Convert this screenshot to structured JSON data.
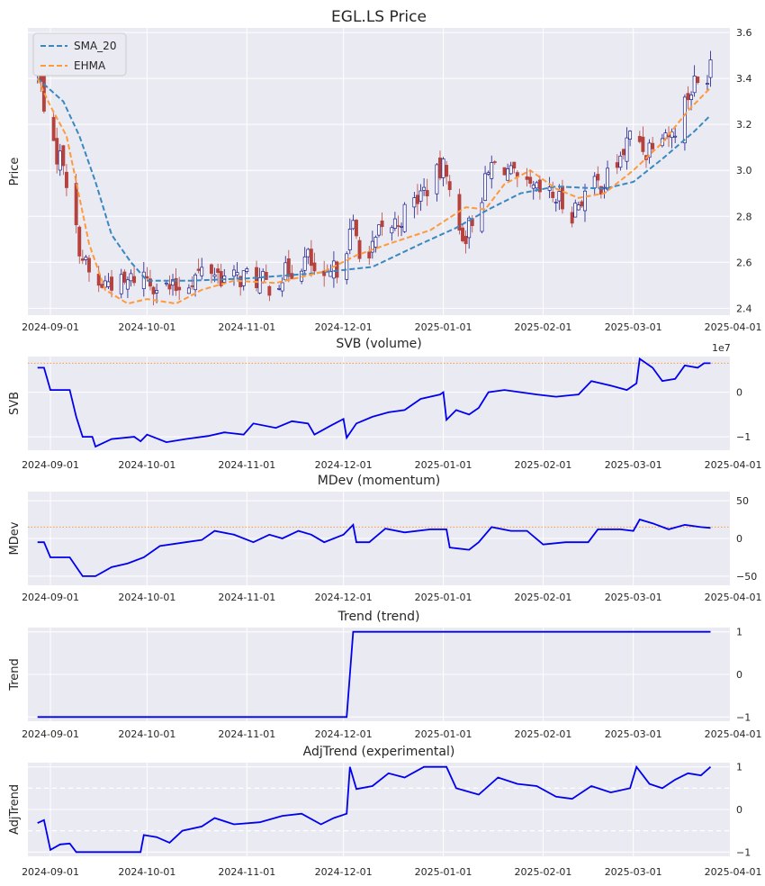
{
  "figure": {
    "title": "EGL.LS Price",
    "colors": {
      "panel_bg": "#eaeaf2",
      "grid": "#ffffff",
      "up": "#1a1a8c",
      "down": "#b5423d",
      "sma": "#3a88c0",
      "ehma": "#ff9a3c",
      "line": "#0000ee",
      "ref": "#ff9a3c"
    }
  },
  "chart_data": [
    {
      "id": "price",
      "type": "candlestick",
      "title": "EGL.LS Price",
      "ylabel": "Price",
      "xlim": [
        "2024-08-25",
        "2025-03-31"
      ],
      "ylim": [
        2.37,
        3.62
      ],
      "yticks": [
        2.4,
        2.6,
        2.8,
        3.0,
        3.2,
        3.4,
        3.6
      ],
      "ytick_labels": [
        "2.4",
        "2.6",
        "2.8",
        "3.0",
        "3.2",
        "3.4",
        "3.6"
      ],
      "xticks": [
        "2024-09-01",
        "2024-10-01",
        "2024-11-01",
        "2024-12-01",
        "2025-01-01",
        "2025-02-01",
        "2025-03-01",
        "2025-04-01"
      ],
      "legend": {
        "position": "top-left",
        "entries": [
          "SMA_20",
          "EHMA"
        ]
      },
      "close_anchors": [
        [
          "2024-08-28",
          3.44
        ],
        [
          "2024-08-30",
          3.3
        ],
        [
          "2024-09-02",
          3.08
        ],
        [
          "2024-09-05",
          3.05
        ],
        [
          "2024-09-08",
          2.78
        ],
        [
          "2024-09-11",
          2.62
        ],
        [
          "2024-09-15",
          2.48
        ],
        [
          "2024-09-19",
          2.52
        ],
        [
          "2024-09-24",
          2.5
        ],
        [
          "2024-09-29",
          2.56
        ],
        [
          "2024-10-04",
          2.5
        ],
        [
          "2024-10-09",
          2.48
        ],
        [
          "2024-10-14",
          2.52
        ],
        [
          "2024-10-20",
          2.58
        ],
        [
          "2024-10-26",
          2.52
        ],
        [
          "2024-11-01",
          2.54
        ],
        [
          "2024-11-08",
          2.5
        ],
        [
          "2024-11-15",
          2.57
        ],
        [
          "2024-11-20",
          2.62
        ],
        [
          "2024-11-24",
          2.48
        ],
        [
          "2024-11-29",
          2.58
        ],
        [
          "2024-12-04",
          2.75
        ],
        [
          "2024-12-08",
          2.58
        ],
        [
          "2024-12-12",
          2.72
        ],
        [
          "2024-12-18",
          2.78
        ],
        [
          "2024-12-24",
          2.88
        ],
        [
          "2024-12-29",
          2.96
        ],
        [
          "2025-01-02",
          3.02
        ],
        [
          "2025-01-04",
          2.75
        ],
        [
          "2025-01-08",
          2.72
        ],
        [
          "2025-01-12",
          2.86
        ],
        [
          "2025-01-16",
          3.02
        ],
        [
          "2025-01-20",
          3.02
        ],
        [
          "2025-01-25",
          2.92
        ],
        [
          "2025-01-31",
          2.9
        ],
        [
          "2025-02-05",
          2.88
        ],
        [
          "2025-02-10",
          2.82
        ],
        [
          "2025-02-15",
          2.92
        ],
        [
          "2025-02-20",
          2.95
        ],
        [
          "2025-02-25",
          3.05
        ],
        [
          "2025-03-01",
          3.18
        ],
        [
          "2025-03-05",
          3.08
        ],
        [
          "2025-03-09",
          3.2
        ],
        [
          "2025-03-13",
          3.15
        ],
        [
          "2025-03-17",
          3.3
        ],
        [
          "2025-03-20",
          3.38
        ],
        [
          "2025-03-23",
          3.35
        ],
        [
          "2025-03-25",
          3.5
        ]
      ],
      "sma_20": [
        [
          "2024-08-28",
          3.4
        ],
        [
          "2024-09-01",
          3.35
        ],
        [
          "2024-09-05",
          3.3
        ],
        [
          "2024-09-10",
          3.15
        ],
        [
          "2024-09-15",
          2.95
        ],
        [
          "2024-09-20",
          2.72
        ],
        [
          "2024-09-26",
          2.6
        ],
        [
          "2024-10-01",
          2.52
        ],
        [
          "2024-10-15",
          2.52
        ],
        [
          "2024-11-01",
          2.53
        ],
        [
          "2024-11-20",
          2.55
        ],
        [
          "2024-12-10",
          2.58
        ],
        [
          "2024-12-25",
          2.68
        ],
        [
          "2025-01-05",
          2.75
        ],
        [
          "2025-01-15",
          2.83
        ],
        [
          "2025-01-25",
          2.9
        ],
        [
          "2025-02-05",
          2.93
        ],
        [
          "2025-02-20",
          2.92
        ],
        [
          "2025-03-01",
          2.95
        ],
        [
          "2025-03-10",
          3.05
        ],
        [
          "2025-03-20",
          3.17
        ],
        [
          "2025-03-25",
          3.24
        ]
      ],
      "ehma": [
        [
          "2024-08-28",
          3.4
        ],
        [
          "2024-09-01",
          3.28
        ],
        [
          "2024-09-06",
          3.15
        ],
        [
          "2024-09-09",
          2.95
        ],
        [
          "2024-09-13",
          2.68
        ],
        [
          "2024-09-18",
          2.48
        ],
        [
          "2024-09-25",
          2.42
        ],
        [
          "2024-10-01",
          2.44
        ],
        [
          "2024-10-10",
          2.42
        ],
        [
          "2024-10-18",
          2.48
        ],
        [
          "2024-10-28",
          2.52
        ],
        [
          "2024-11-10",
          2.51
        ],
        [
          "2024-11-25",
          2.56
        ],
        [
          "2024-12-05",
          2.63
        ],
        [
          "2024-12-15",
          2.68
        ],
        [
          "2024-12-28",
          2.74
        ],
        [
          "2025-01-08",
          2.84
        ],
        [
          "2025-01-14",
          2.83
        ],
        [
          "2025-01-20",
          2.94
        ],
        [
          "2025-01-28",
          3.0
        ],
        [
          "2025-02-05",
          2.92
        ],
        [
          "2025-02-12",
          2.88
        ],
        [
          "2025-02-20",
          2.9
        ],
        [
          "2025-03-01",
          3.0
        ],
        [
          "2025-03-10",
          3.12
        ],
        [
          "2025-03-18",
          3.26
        ],
        [
          "2025-03-25",
          3.36
        ]
      ]
    },
    {
      "id": "svb",
      "type": "line",
      "title": "SVB (volume)",
      "ylabel": "SVB",
      "ylim": [
        -1.3,
        0.8
      ],
      "yticks": [
        -1,
        0
      ],
      "ytick_labels": [
        "−1",
        "0"
      ],
      "offset_label": "1e7",
      "ref_line": 0.65,
      "points": [
        [
          "2024-08-28",
          0.55
        ],
        [
          "2024-08-30",
          0.55
        ],
        [
          "2024-09-01",
          0.05
        ],
        [
          "2024-09-07",
          0.05
        ],
        [
          "2024-09-09",
          -0.55
        ],
        [
          "2024-09-11",
          -1.0
        ],
        [
          "2024-09-14",
          -1.0
        ],
        [
          "2024-09-15",
          -1.22
        ],
        [
          "2024-09-20",
          -1.05
        ],
        [
          "2024-09-27",
          -1.0
        ],
        [
          "2024-09-29",
          -1.1
        ],
        [
          "2024-10-01",
          -0.95
        ],
        [
          "2024-10-07",
          -1.12
        ],
        [
          "2024-10-13",
          -1.05
        ],
        [
          "2024-10-20",
          -0.98
        ],
        [
          "2024-10-25",
          -0.9
        ],
        [
          "2024-10-31",
          -0.95
        ],
        [
          "2024-11-03",
          -0.7
        ],
        [
          "2024-11-10",
          -0.8
        ],
        [
          "2024-11-15",
          -0.65
        ],
        [
          "2024-11-20",
          -0.7
        ],
        [
          "2024-11-22",
          -0.95
        ],
        [
          "2024-11-27",
          -0.75
        ],
        [
          "2024-12-01",
          -0.6
        ],
        [
          "2024-12-02",
          -1.02
        ],
        [
          "2024-12-05",
          -0.7
        ],
        [
          "2024-12-10",
          -0.55
        ],
        [
          "2024-12-15",
          -0.45
        ],
        [
          "2024-12-20",
          -0.4
        ],
        [
          "2024-12-25",
          -0.15
        ],
        [
          "2024-12-31",
          -0.05
        ],
        [
          "2025-01-01",
          0.0
        ],
        [
          "2025-01-02",
          -0.62
        ],
        [
          "2025-01-05",
          -0.4
        ],
        [
          "2025-01-09",
          -0.5
        ],
        [
          "2025-01-12",
          -0.35
        ],
        [
          "2025-01-15",
          0.0
        ],
        [
          "2025-01-20",
          0.05
        ],
        [
          "2025-01-25",
          0.0
        ],
        [
          "2025-01-30",
          -0.05
        ],
        [
          "2025-02-05",
          -0.1
        ],
        [
          "2025-02-12",
          -0.05
        ],
        [
          "2025-02-16",
          0.25
        ],
        [
          "2025-02-22",
          0.15
        ],
        [
          "2025-02-27",
          0.05
        ],
        [
          "2025-03-02",
          0.2
        ],
        [
          "2025-03-03",
          0.75
        ],
        [
          "2025-03-07",
          0.55
        ],
        [
          "2025-03-10",
          0.25
        ],
        [
          "2025-03-14",
          0.3
        ],
        [
          "2025-03-17",
          0.6
        ],
        [
          "2025-03-21",
          0.55
        ],
        [
          "2025-03-23",
          0.65
        ],
        [
          "2025-03-25",
          0.65
        ]
      ]
    },
    {
      "id": "mdev",
      "type": "line",
      "title": "MDev (momentum)",
      "ylabel": "MDev",
      "ylim": [
        -62,
        62
      ],
      "yticks": [
        -50,
        0,
        50
      ],
      "ytick_labels": [
        "−50",
        "0",
        "50"
      ],
      "ref_line": 15,
      "points": [
        [
          "2024-08-28",
          -5
        ],
        [
          "2024-08-30",
          -5
        ],
        [
          "2024-09-01",
          -25
        ],
        [
          "2024-09-07",
          -25
        ],
        [
          "2024-09-11",
          -50
        ],
        [
          "2024-09-15",
          -50
        ],
        [
          "2024-09-20",
          -38
        ],
        [
          "2024-09-25",
          -33
        ],
        [
          "2024-09-30",
          -25
        ],
        [
          "2024-10-05",
          -10
        ],
        [
          "2024-10-13",
          -5
        ],
        [
          "2024-10-18",
          -2
        ],
        [
          "2024-10-22",
          10
        ],
        [
          "2024-10-28",
          5
        ],
        [
          "2024-11-03",
          -5
        ],
        [
          "2024-11-08",
          5
        ],
        [
          "2024-11-12",
          0
        ],
        [
          "2024-11-17",
          10
        ],
        [
          "2024-11-21",
          5
        ],
        [
          "2024-11-25",
          -5
        ],
        [
          "2024-12-01",
          5
        ],
        [
          "2024-12-04",
          18
        ],
        [
          "2024-12-05",
          -5
        ],
        [
          "2024-12-09",
          -5
        ],
        [
          "2024-12-14",
          13
        ],
        [
          "2024-12-20",
          8
        ],
        [
          "2024-12-28",
          12
        ],
        [
          "2025-01-02",
          12
        ],
        [
          "2025-01-03",
          -12
        ],
        [
          "2025-01-09",
          -15
        ],
        [
          "2025-01-12",
          -5
        ],
        [
          "2025-01-16",
          15
        ],
        [
          "2025-01-22",
          10
        ],
        [
          "2025-01-27",
          10
        ],
        [
          "2025-02-01",
          -8
        ],
        [
          "2025-02-08",
          -5
        ],
        [
          "2025-02-15",
          -5
        ],
        [
          "2025-02-18",
          12
        ],
        [
          "2025-02-25",
          12
        ],
        [
          "2025-03-01",
          10
        ],
        [
          "2025-03-03",
          25
        ],
        [
          "2025-03-07",
          20
        ],
        [
          "2025-03-12",
          12
        ],
        [
          "2025-03-17",
          18
        ],
        [
          "2025-03-22",
          15
        ],
        [
          "2025-03-25",
          14
        ]
      ]
    },
    {
      "id": "trend",
      "type": "line",
      "title": "Trend (trend)",
      "ylabel": "Trend",
      "ylim": [
        -1.1,
        1.1
      ],
      "yticks": [
        -1,
        0,
        1
      ],
      "ytick_labels": [
        "−1",
        "0",
        "1"
      ],
      "points": [
        [
          "2024-08-28",
          -1
        ],
        [
          "2024-12-02",
          -1
        ],
        [
          "2024-12-04",
          1
        ],
        [
          "2025-03-25",
          1
        ]
      ]
    },
    {
      "id": "adjtrend",
      "type": "line",
      "title": "AdjTrend (experimental)",
      "ylabel": "AdjTrend",
      "ylim": [
        -1.1,
        1.1
      ],
      "yticks": [
        -1,
        0,
        1
      ],
      "ytick_labels": [
        "−1",
        "0",
        "1"
      ],
      "ref_lines": [
        0.5,
        -0.5
      ],
      "points": [
        [
          "2024-08-28",
          -0.32
        ],
        [
          "2024-08-30",
          -0.25
        ],
        [
          "2024-09-01",
          -0.95
        ],
        [
          "2024-09-04",
          -0.82
        ],
        [
          "2024-09-07",
          -0.8
        ],
        [
          "2024-09-09",
          -1.0
        ],
        [
          "2024-09-29",
          -1.0
        ],
        [
          "2024-09-30",
          -0.6
        ],
        [
          "2024-10-04",
          -0.65
        ],
        [
          "2024-10-08",
          -0.78
        ],
        [
          "2024-10-12",
          -0.5
        ],
        [
          "2024-10-18",
          -0.4
        ],
        [
          "2024-10-22",
          -0.2
        ],
        [
          "2024-10-28",
          -0.35
        ],
        [
          "2024-11-05",
          -0.3
        ],
        [
          "2024-11-12",
          -0.15
        ],
        [
          "2024-11-18",
          -0.1
        ],
        [
          "2024-11-24",
          -0.35
        ],
        [
          "2024-11-28",
          -0.2
        ],
        [
          "2024-12-02",
          -0.1
        ],
        [
          "2024-12-03",
          1.0
        ],
        [
          "2024-12-05",
          0.48
        ],
        [
          "2024-12-10",
          0.55
        ],
        [
          "2024-12-15",
          0.85
        ],
        [
          "2024-12-20",
          0.75
        ],
        [
          "2024-12-26",
          1.0
        ],
        [
          "2025-01-02",
          1.0
        ],
        [
          "2025-01-05",
          0.5
        ],
        [
          "2025-01-12",
          0.35
        ],
        [
          "2025-01-18",
          0.75
        ],
        [
          "2025-01-24",
          0.6
        ],
        [
          "2025-01-30",
          0.55
        ],
        [
          "2025-02-05",
          0.3
        ],
        [
          "2025-02-10",
          0.25
        ],
        [
          "2025-02-16",
          0.55
        ],
        [
          "2025-02-22",
          0.4
        ],
        [
          "2025-02-28",
          0.5
        ],
        [
          "2025-03-02",
          1.0
        ],
        [
          "2025-03-06",
          0.6
        ],
        [
          "2025-03-10",
          0.5
        ],
        [
          "2025-03-14",
          0.7
        ],
        [
          "2025-03-18",
          0.85
        ],
        [
          "2025-03-22",
          0.8
        ],
        [
          "2025-03-25",
          1.0
        ]
      ]
    }
  ]
}
